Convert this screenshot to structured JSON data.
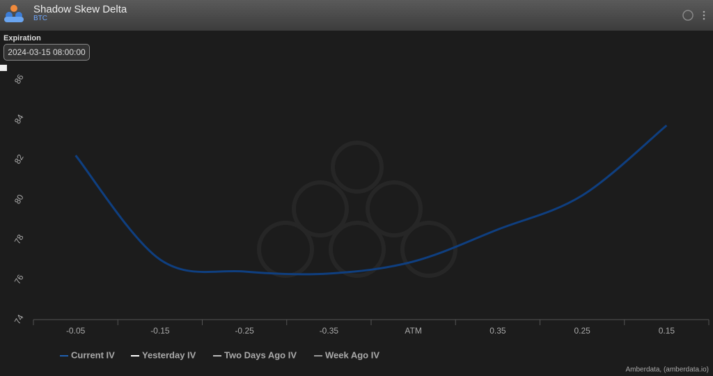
{
  "header": {
    "title": "Shadow Skew Delta",
    "subtitle": "BTC"
  },
  "filter": {
    "label": "Expiration",
    "value": "2024-03-15 08:00:00"
  },
  "chart_data": {
    "type": "line",
    "categories": [
      "-0.05",
      "-0.15",
      "-0.25",
      "-0.35",
      "ATM",
      "0.35",
      "0.25",
      "0.15"
    ],
    "series": [
      {
        "name": "Current IV",
        "color": "#0f3f80",
        "values": [
          82.2,
          77.0,
          76.4,
          76.3,
          76.9,
          78.5,
          80.2,
          83.7
        ]
      },
      {
        "name": "Yesterday IV",
        "color": "#ffffff"
      },
      {
        "name": "Two Days Ago IV",
        "color": "#bbbbbb"
      },
      {
        "name": "Week Ago IV",
        "color": "#999999"
      }
    ],
    "ylim": [
      74,
      86
    ],
    "yticks": [
      74,
      76,
      78,
      80,
      82,
      84,
      86
    ],
    "credits": "Amberdata, (amberdata.io)"
  }
}
